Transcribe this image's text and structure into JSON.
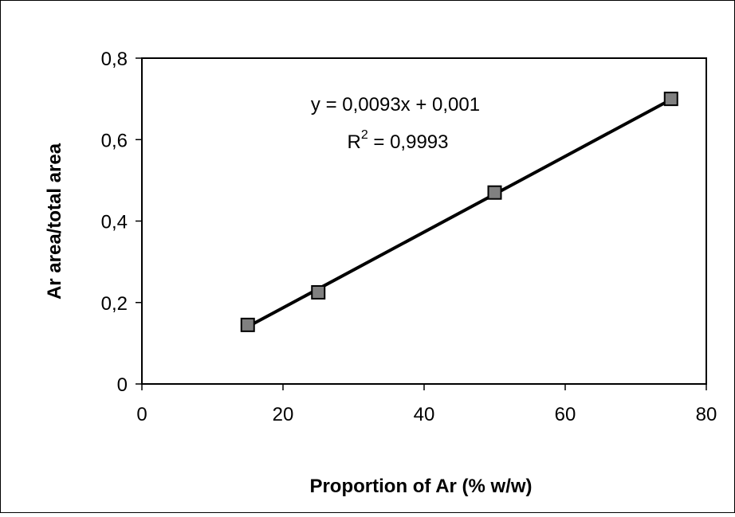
{
  "chart_data": {
    "type": "scatter",
    "title": "",
    "xlabel": "Proportion of Ar (% w/w)",
    "ylabel": "Ar area/total area",
    "xlim": [
      0,
      80
    ],
    "ylim": [
      0,
      0.8
    ],
    "x_ticks": [
      0,
      20,
      40,
      60,
      80
    ],
    "y_ticks": [
      0,
      0.2,
      0.4,
      0.6,
      0.8
    ],
    "x_tick_labels": [
      "0",
      "20",
      "40",
      "60",
      "80"
    ],
    "y_tick_labels": [
      "0",
      "0,2",
      "0,4",
      "0,6",
      "0,8"
    ],
    "grid": false,
    "legend": "none",
    "series": [
      {
        "x": [
          15,
          25,
          50,
          75
        ],
        "y": [
          0.145,
          0.225,
          0.47,
          0.7
        ],
        "marker": "square",
        "marker_color": "#808080"
      }
    ],
    "trendline": {
      "type": "linear",
      "slope": 0.0093,
      "intercept": 0.001,
      "x_range": [
        15,
        75
      ],
      "color": "#000000"
    },
    "equation_text": "y = 0,0093x + 0,001",
    "r2_prefix": "R",
    "r2_sup": "2",
    "r2_value": " = 0,9993"
  }
}
